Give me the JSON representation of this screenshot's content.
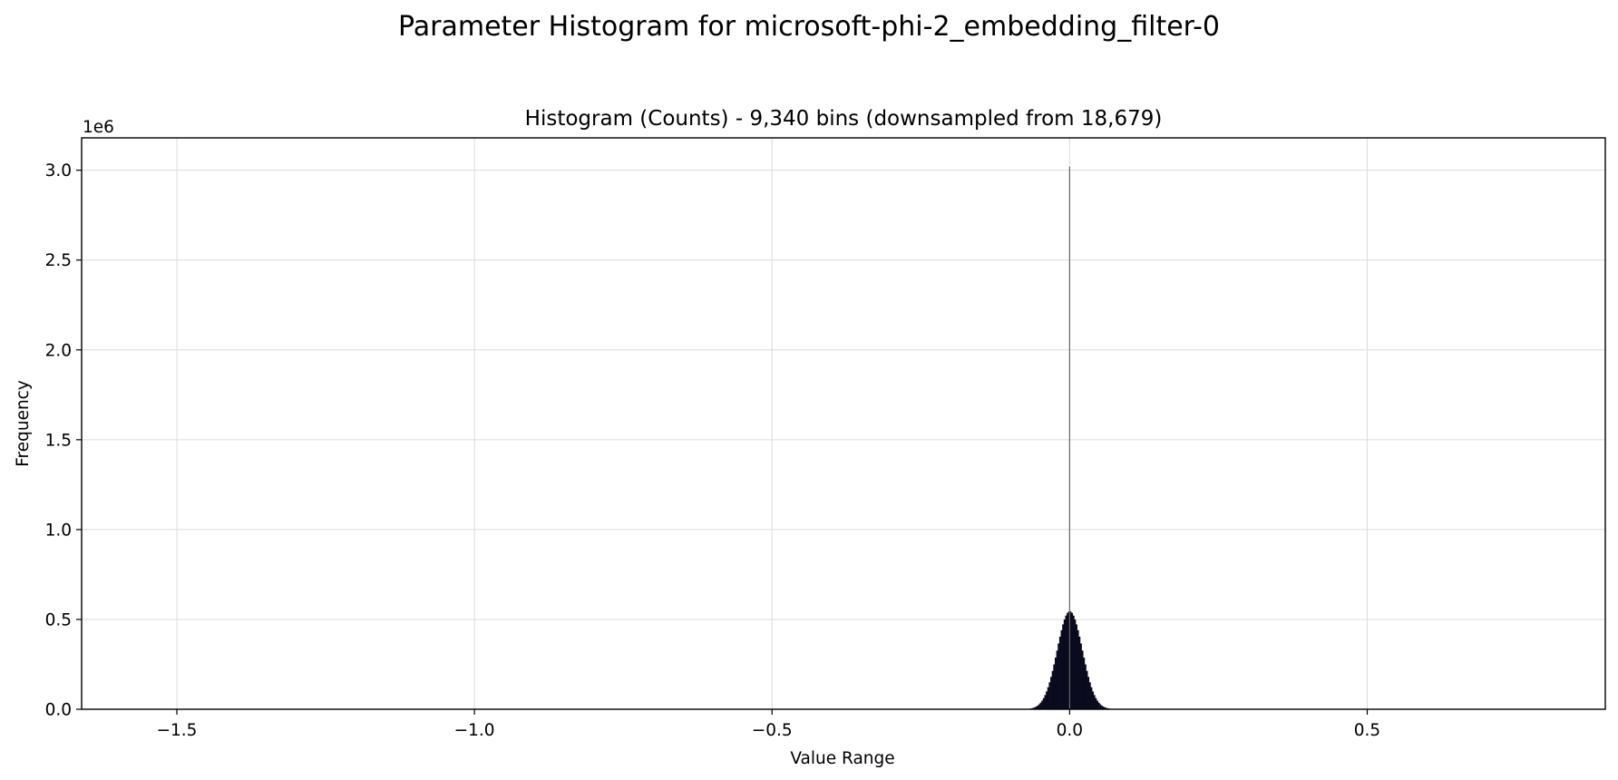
{
  "page": {
    "suptitle": "Parameter Histogram for microsoft-phi-2_embedding_filter-0"
  },
  "chart_data": {
    "type": "histogram",
    "title": "Histogram (Counts) - 9,340 bins (downsampled from 18,679)",
    "xlabel": "Value Range",
    "ylabel": "Frequency",
    "y_offset_text": "1e6",
    "xlim": [
      -1.66,
      0.9
    ],
    "ylim": [
      0,
      3.18
    ],
    "x_ticks": [
      -1.5,
      -1.0,
      -0.5,
      0.0,
      0.5
    ],
    "x_tick_labels": [
      "−1.5",
      "−1.0",
      "−0.5",
      "0.0",
      "0.5"
    ],
    "y_ticks": [
      0.0,
      0.5,
      1.0,
      1.5,
      2.0,
      2.5,
      3.0
    ],
    "y_tick_labels": [
      "0.0",
      "0.5",
      "1.0",
      "1.5",
      "2.0",
      "2.5",
      "3.0"
    ],
    "grid": true,
    "bar_color": "#0b0b1e",
    "spike_color": "#666666",
    "distribution": {
      "shape": "gaussian",
      "center": 0.0,
      "sigma": 0.021,
      "peak": 0.545,
      "support": [
        -0.075,
        0.075
      ]
    },
    "spike": {
      "x": 0.0,
      "value": 3.02
    }
  }
}
